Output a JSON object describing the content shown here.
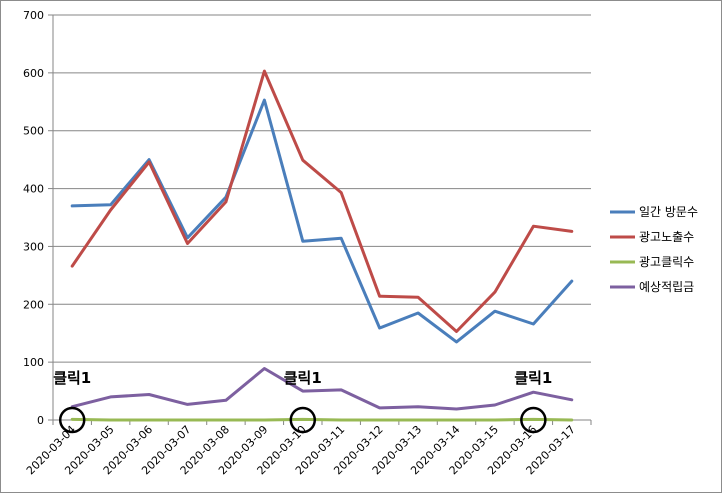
{
  "chart_data": {
    "type": "line",
    "title": "",
    "xlabel": "",
    "ylabel": "",
    "ylim": [
      0,
      700
    ],
    "yticks": [
      0,
      100,
      200,
      300,
      400,
      500,
      600,
      700
    ],
    "grid": true,
    "legend_position": "right",
    "categories": [
      "2020-03-04",
      "2020-03-05",
      "2020-03-06",
      "2020-03-07",
      "2020-03-08",
      "2020-03-09",
      "2020-03-10",
      "2020-03-11",
      "2020-03-12",
      "2020-03-13",
      "2020-03-14",
      "2020-03-15",
      "2020-03-16",
      "2020-03-17"
    ],
    "series": [
      {
        "name": "일간 방문수",
        "color": "#4a7ebb",
        "values": [
          370,
          372,
          450,
          315,
          385,
          553,
          309,
          314,
          159,
          185,
          135,
          188,
          166,
          240
        ]
      },
      {
        "name": "광고노출수",
        "color": "#be4b48",
        "values": [
          266,
          363,
          446,
          305,
          377,
          603,
          449,
          393,
          214,
          212,
          153,
          221,
          335,
          326
        ]
      },
      {
        "name": "광고클릭수",
        "color": "#98b954",
        "values": [
          1,
          0,
          0,
          0,
          0,
          0,
          1,
          0,
          0,
          0,
          0,
          0,
          1,
          0
        ]
      },
      {
        "name": "예상적립금",
        "color": "#7d60a0",
        "values": [
          23,
          40,
          44,
          27,
          34,
          89,
          50,
          52,
          21,
          23,
          19,
          26,
          48,
          35
        ]
      }
    ],
    "annotations": [
      {
        "text": "클릭1",
        "category": "2020-03-04",
        "circled": true
      },
      {
        "text": "클릭1",
        "category": "2020-03-10",
        "circled": true
      },
      {
        "text": "클릭1",
        "category": "2020-03-16",
        "circled": true
      }
    ]
  }
}
